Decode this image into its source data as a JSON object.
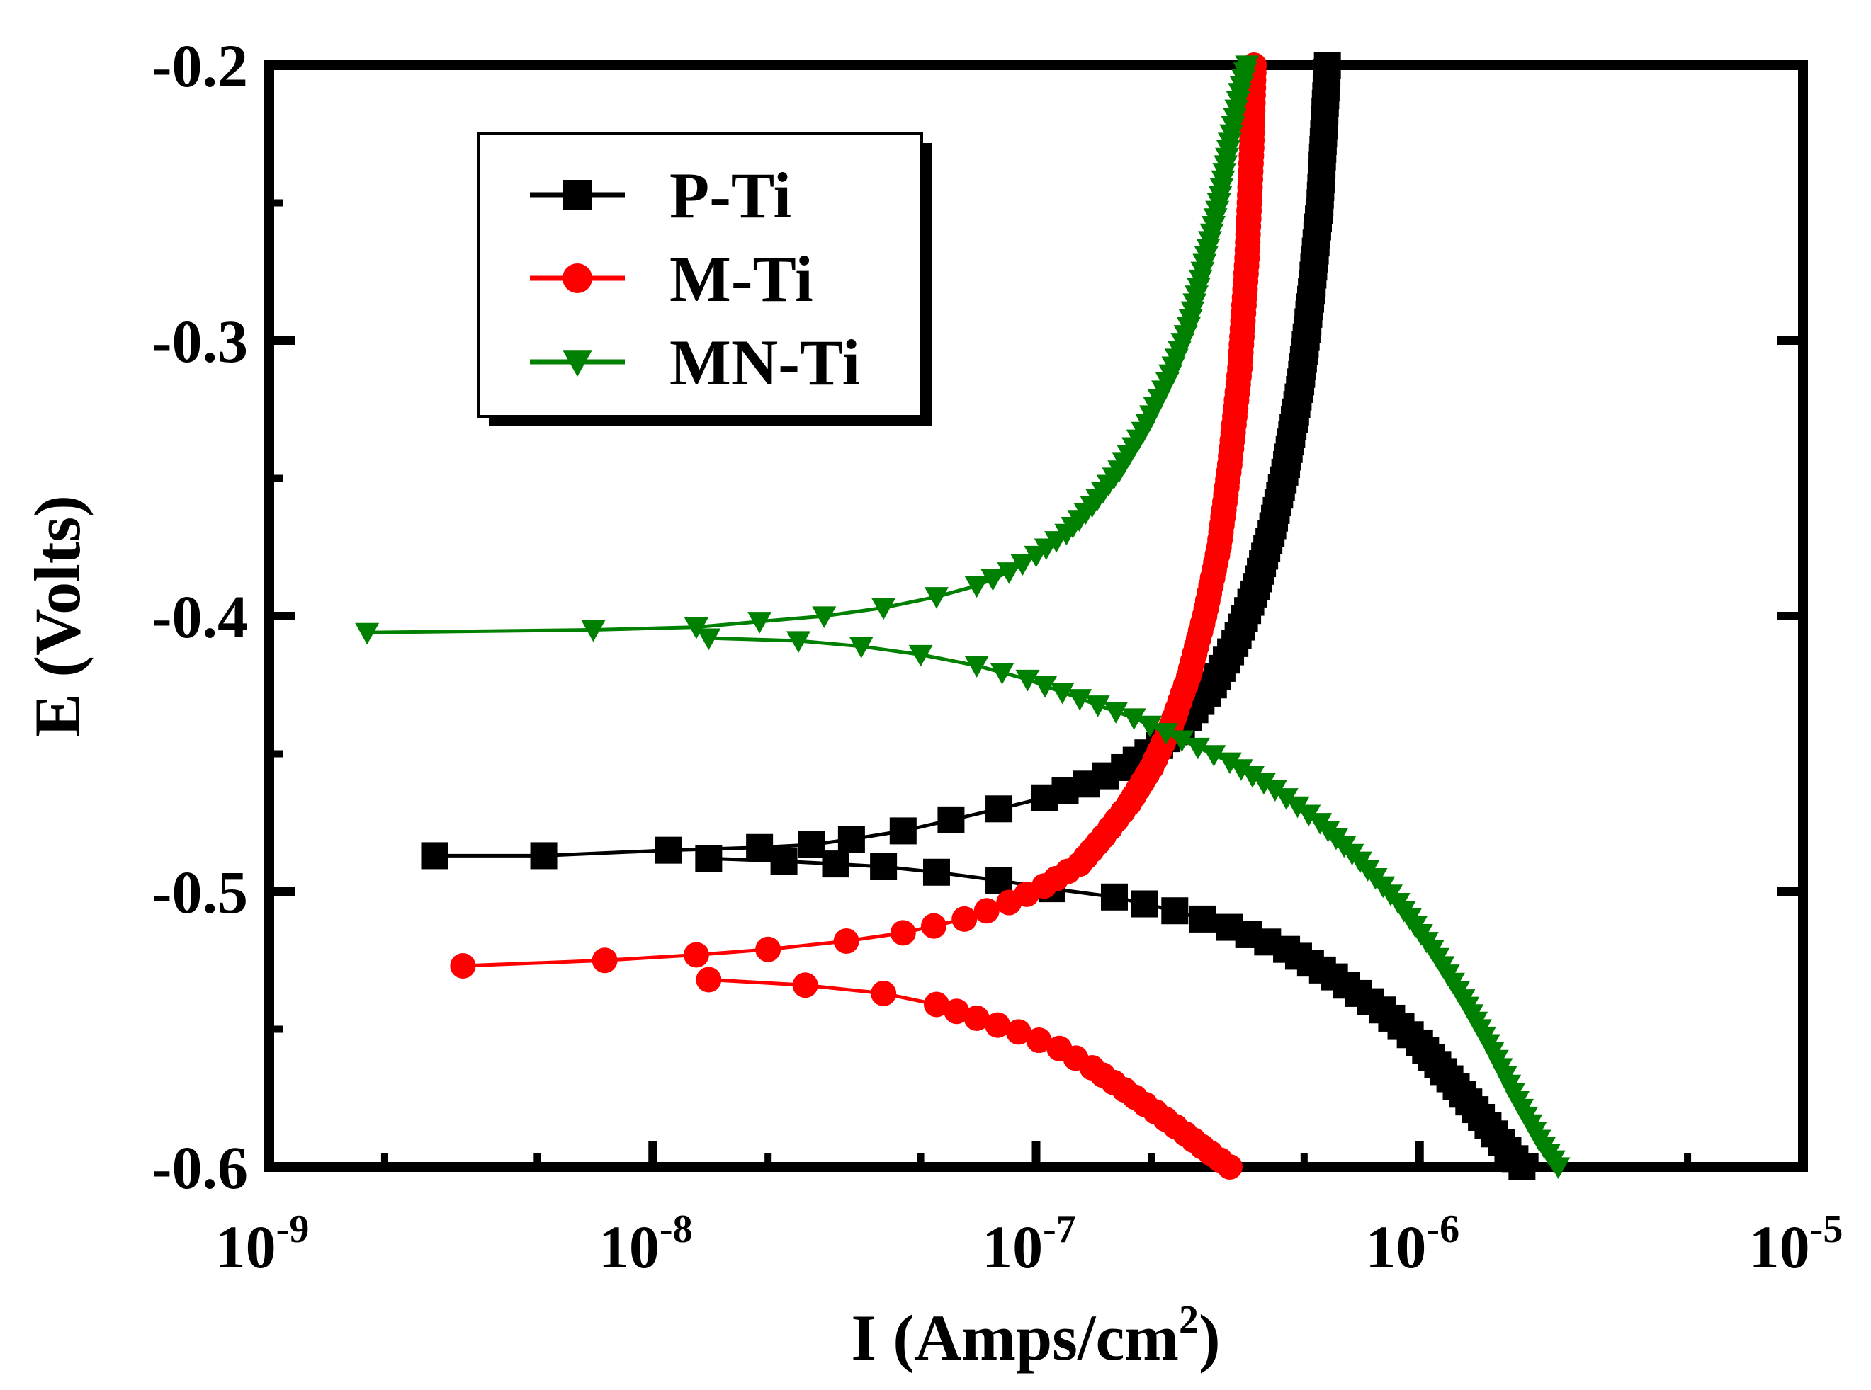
{
  "chart_data": {
    "type": "line",
    "title": "",
    "xlabel": "I (Amps/cm",
    "xlabel_sup": "2",
    "xlabel_close": ")",
    "ylabel": "E (Volts)",
    "xscale": "log",
    "xlim": [
      1e-09,
      1e-05
    ],
    "ylim": [
      -0.6,
      -0.2
    ],
    "x_ticks": [
      {
        "value": 1e-09,
        "base": "10",
        "exp": "-9"
      },
      {
        "value": 1e-08,
        "base": "10",
        "exp": "-8"
      },
      {
        "value": 1e-07,
        "base": "10",
        "exp": "-7"
      },
      {
        "value": 1e-06,
        "base": "10",
        "exp": "-6"
      },
      {
        "value": 1e-05,
        "base": "10",
        "exp": "-5"
      }
    ],
    "y_ticks": [
      {
        "value": -0.2,
        "label": "-0.2"
      },
      {
        "value": -0.3,
        "label": "-0.3"
      },
      {
        "value": -0.4,
        "label": "-0.4"
      },
      {
        "value": -0.5,
        "label": "-0.5"
      },
      {
        "value": -0.6,
        "label": "-0.6"
      }
    ],
    "legend_position": "top-left",
    "series": [
      {
        "name": "P-Ti",
        "color": "#000000",
        "marker": "square",
        "ecorr": -0.488,
        "anodic": [
          [
            2.7e-09,
            -0.487
          ],
          [
            5.2e-09,
            -0.487
          ],
          [
            1.1e-08,
            -0.485
          ],
          [
            1.9e-08,
            -0.484
          ],
          [
            2.6e-08,
            -0.483
          ],
          [
            3.3e-08,
            -0.481
          ],
          [
            4.5e-08,
            -0.478
          ],
          [
            6e-08,
            -0.474
          ],
          [
            8e-08,
            -0.47
          ],
          [
            1.05e-07,
            -0.466
          ],
          [
            1.35e-07,
            -0.461
          ],
          [
            1.7e-07,
            -0.455
          ],
          [
            2.1e-07,
            -0.447
          ],
          [
            2.5e-07,
            -0.437
          ],
          [
            2.9e-07,
            -0.425
          ],
          [
            3.3e-07,
            -0.41
          ],
          [
            3.7e-07,
            -0.392
          ],
          [
            4.1e-07,
            -0.37
          ],
          [
            4.5e-07,
            -0.345
          ],
          [
            4.9e-07,
            -0.315
          ],
          [
            5.2e-07,
            -0.285
          ],
          [
            5.5e-07,
            -0.25
          ],
          [
            5.75e-07,
            -0.2
          ]
        ],
        "cathodic": [
          [
            1.4e-08,
            -0.488
          ],
          [
            2.2e-08,
            -0.489
          ],
          [
            3e-08,
            -0.49
          ],
          [
            4e-08,
            -0.491
          ],
          [
            5.5e-08,
            -0.493
          ],
          [
            8e-08,
            -0.496
          ],
          [
            1.1e-07,
            -0.499
          ],
          [
            1.6e-07,
            -0.502
          ],
          [
            2.3e-07,
            -0.507
          ],
          [
            3.2e-07,
            -0.513
          ],
          [
            4.5e-07,
            -0.521
          ],
          [
            6e-07,
            -0.531
          ],
          [
            8e-07,
            -0.543
          ],
          [
            1e-06,
            -0.555
          ],
          [
            1.2e-06,
            -0.568
          ],
          [
            1.45e-06,
            -0.582
          ],
          [
            1.7e-06,
            -0.594
          ],
          [
            1.85e-06,
            -0.6
          ]
        ]
      },
      {
        "name": "M-Ti",
        "color": "#ff0000",
        "marker": "circle",
        "ecorr": -0.527,
        "anodic": [
          [
            3.2e-09,
            -0.527
          ],
          [
            7.5e-09,
            -0.525
          ],
          [
            1.3e-08,
            -0.523
          ],
          [
            2e-08,
            -0.521
          ],
          [
            3.2e-08,
            -0.518
          ],
          [
            4.5e-08,
            -0.515
          ],
          [
            6.5e-08,
            -0.51
          ],
          [
            8.5e-08,
            -0.504
          ],
          [
            1.05e-07,
            -0.498
          ],
          [
            1.3e-07,
            -0.49
          ],
          [
            1.5e-07,
            -0.48
          ],
          [
            1.75e-07,
            -0.468
          ],
          [
            2e-07,
            -0.455
          ],
          [
            2.25e-07,
            -0.44
          ],
          [
            2.5e-07,
            -0.422
          ],
          [
            2.75e-07,
            -0.4
          ],
          [
            3e-07,
            -0.375
          ],
          [
            3.2e-07,
            -0.345
          ],
          [
            3.4e-07,
            -0.31
          ],
          [
            3.55e-07,
            -0.27
          ],
          [
            3.65e-07,
            -0.23
          ],
          [
            3.7e-07,
            -0.2
          ]
        ],
        "cathodic": [
          [
            1.4e-08,
            -0.532
          ],
          [
            2.5e-08,
            -0.534
          ],
          [
            4e-08,
            -0.537
          ],
          [
            5.5e-08,
            -0.541
          ],
          [
            7e-08,
            -0.546
          ],
          [
            9e-08,
            -0.551
          ],
          [
            1.15e-07,
            -0.557
          ],
          [
            1.4e-07,
            -0.564
          ],
          [
            1.7e-07,
            -0.572
          ],
          [
            2.05e-07,
            -0.58
          ],
          [
            2.45e-07,
            -0.588
          ],
          [
            2.85e-07,
            -0.595
          ],
          [
            3.2e-07,
            -0.6
          ]
        ]
      },
      {
        "name": "MN-Ti",
        "color": "#008000",
        "marker": "triangle-down",
        "ecorr": -0.406,
        "anodic": [
          [
            1.8e-09,
            -0.406
          ],
          [
            7e-09,
            -0.405
          ],
          [
            1.3e-08,
            -0.404
          ],
          [
            1.9e-08,
            -0.402
          ],
          [
            2.8e-08,
            -0.4
          ],
          [
            4e-08,
            -0.397
          ],
          [
            5.5e-08,
            -0.393
          ],
          [
            7e-08,
            -0.389
          ],
          [
            8.5e-08,
            -0.384
          ],
          [
            1e-07,
            -0.378
          ],
          [
            1.2e-07,
            -0.37
          ],
          [
            1.4e-07,
            -0.36
          ],
          [
            1.65e-07,
            -0.347
          ],
          [
            1.9e-07,
            -0.333
          ],
          [
            2.2e-07,
            -0.315
          ],
          [
            2.5e-07,
            -0.295
          ],
          [
            2.75e-07,
            -0.272
          ],
          [
            3e-07,
            -0.25
          ],
          [
            3.2e-07,
            -0.228
          ],
          [
            3.4e-07,
            -0.21
          ],
          [
            3.55e-07,
            -0.2
          ]
        ],
        "cathodic": [
          [
            1.4e-08,
            -0.408
          ],
          [
            2.4e-08,
            -0.409
          ],
          [
            3.5e-08,
            -0.411
          ],
          [
            5e-08,
            -0.414
          ],
          [
            7e-08,
            -0.418
          ],
          [
            9.5e-08,
            -0.423
          ],
          [
            1.3e-07,
            -0.43
          ],
          [
            1.8e-07,
            -0.437
          ],
          [
            2.4e-07,
            -0.445
          ],
          [
            3.2e-07,
            -0.453
          ],
          [
            4.2e-07,
            -0.463
          ],
          [
            5.5e-07,
            -0.475
          ],
          [
            7e-07,
            -0.489
          ],
          [
            8.8e-07,
            -0.504
          ],
          [
            1.08e-06,
            -0.521
          ],
          [
            1.3e-06,
            -0.539
          ],
          [
            1.55e-06,
            -0.558
          ],
          [
            1.8e-06,
            -0.576
          ],
          [
            2.05e-06,
            -0.59
          ],
          [
            2.3e-06,
            -0.6
          ]
        ]
      }
    ]
  }
}
